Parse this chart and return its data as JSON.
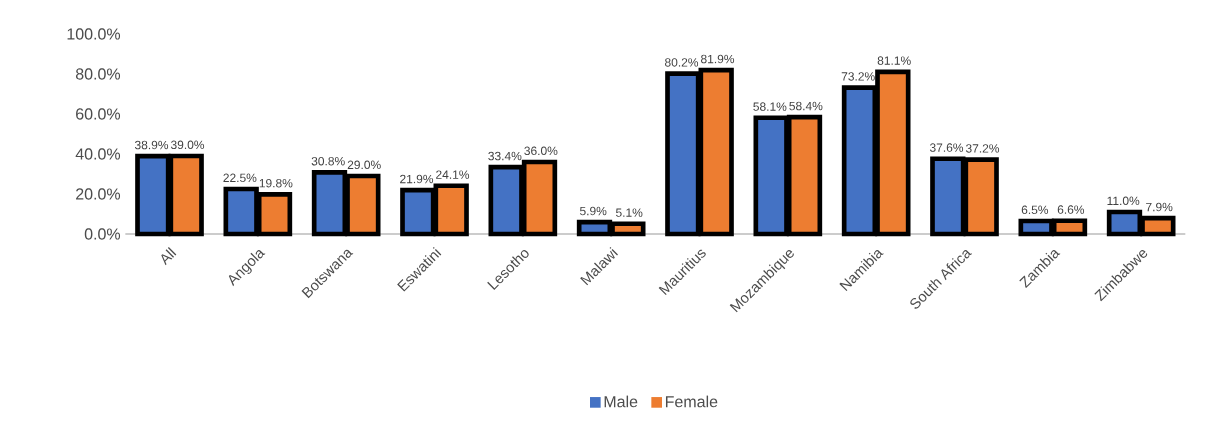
{
  "chart_data": {
    "type": "bar",
    "categories": [
      "All",
      "Angola",
      "Botswana",
      "Eswatini",
      "Lesotho",
      "Malawi",
      "Mauritius",
      "Mozambique",
      "Namibia",
      "South Africa",
      "Zambia",
      "Zimbabwe"
    ],
    "series": [
      {
        "name": "Male",
        "color": "#4472c4",
        "values": [
          38.9,
          22.5,
          30.8,
          21.9,
          33.4,
          5.9,
          80.2,
          58.1,
          73.2,
          37.6,
          6.5,
          11.0
        ],
        "value_labels": [
          "38.9%",
          "22.5%",
          "30.8%",
          "21.9%",
          "33.4%",
          "5.9%",
          "80.2%",
          "58.1%",
          "73.2%",
          "37.6%",
          "6.5%",
          "11.0%"
        ]
      },
      {
        "name": "Female",
        "color": "#ed7d31",
        "values": [
          39.0,
          19.8,
          29.0,
          24.1,
          36.0,
          5.1,
          81.9,
          58.4,
          81.1,
          37.2,
          6.6,
          7.9
        ],
        "value_labels": [
          "39.0%",
          "19.8%",
          "29.0%",
          "24.1%",
          "36.0%",
          "5.1%",
          "81.9%",
          "58.4%",
          "81.1%",
          "37.2%",
          "6.6%",
          "7.9%"
        ]
      }
    ],
    "ylim": [
      0,
      100
    ],
    "yticks": [
      {
        "value": 0,
        "label": "0.0%"
      },
      {
        "value": 20,
        "label": "20.0%"
      },
      {
        "value": 40,
        "label": "40.0%"
      },
      {
        "value": 60,
        "label": "60.0%"
      },
      {
        "value": 80,
        "label": "80.0%"
      },
      {
        "value": 100,
        "label": "100.0%"
      }
    ],
    "grid": false,
    "legend": "bottom"
  }
}
